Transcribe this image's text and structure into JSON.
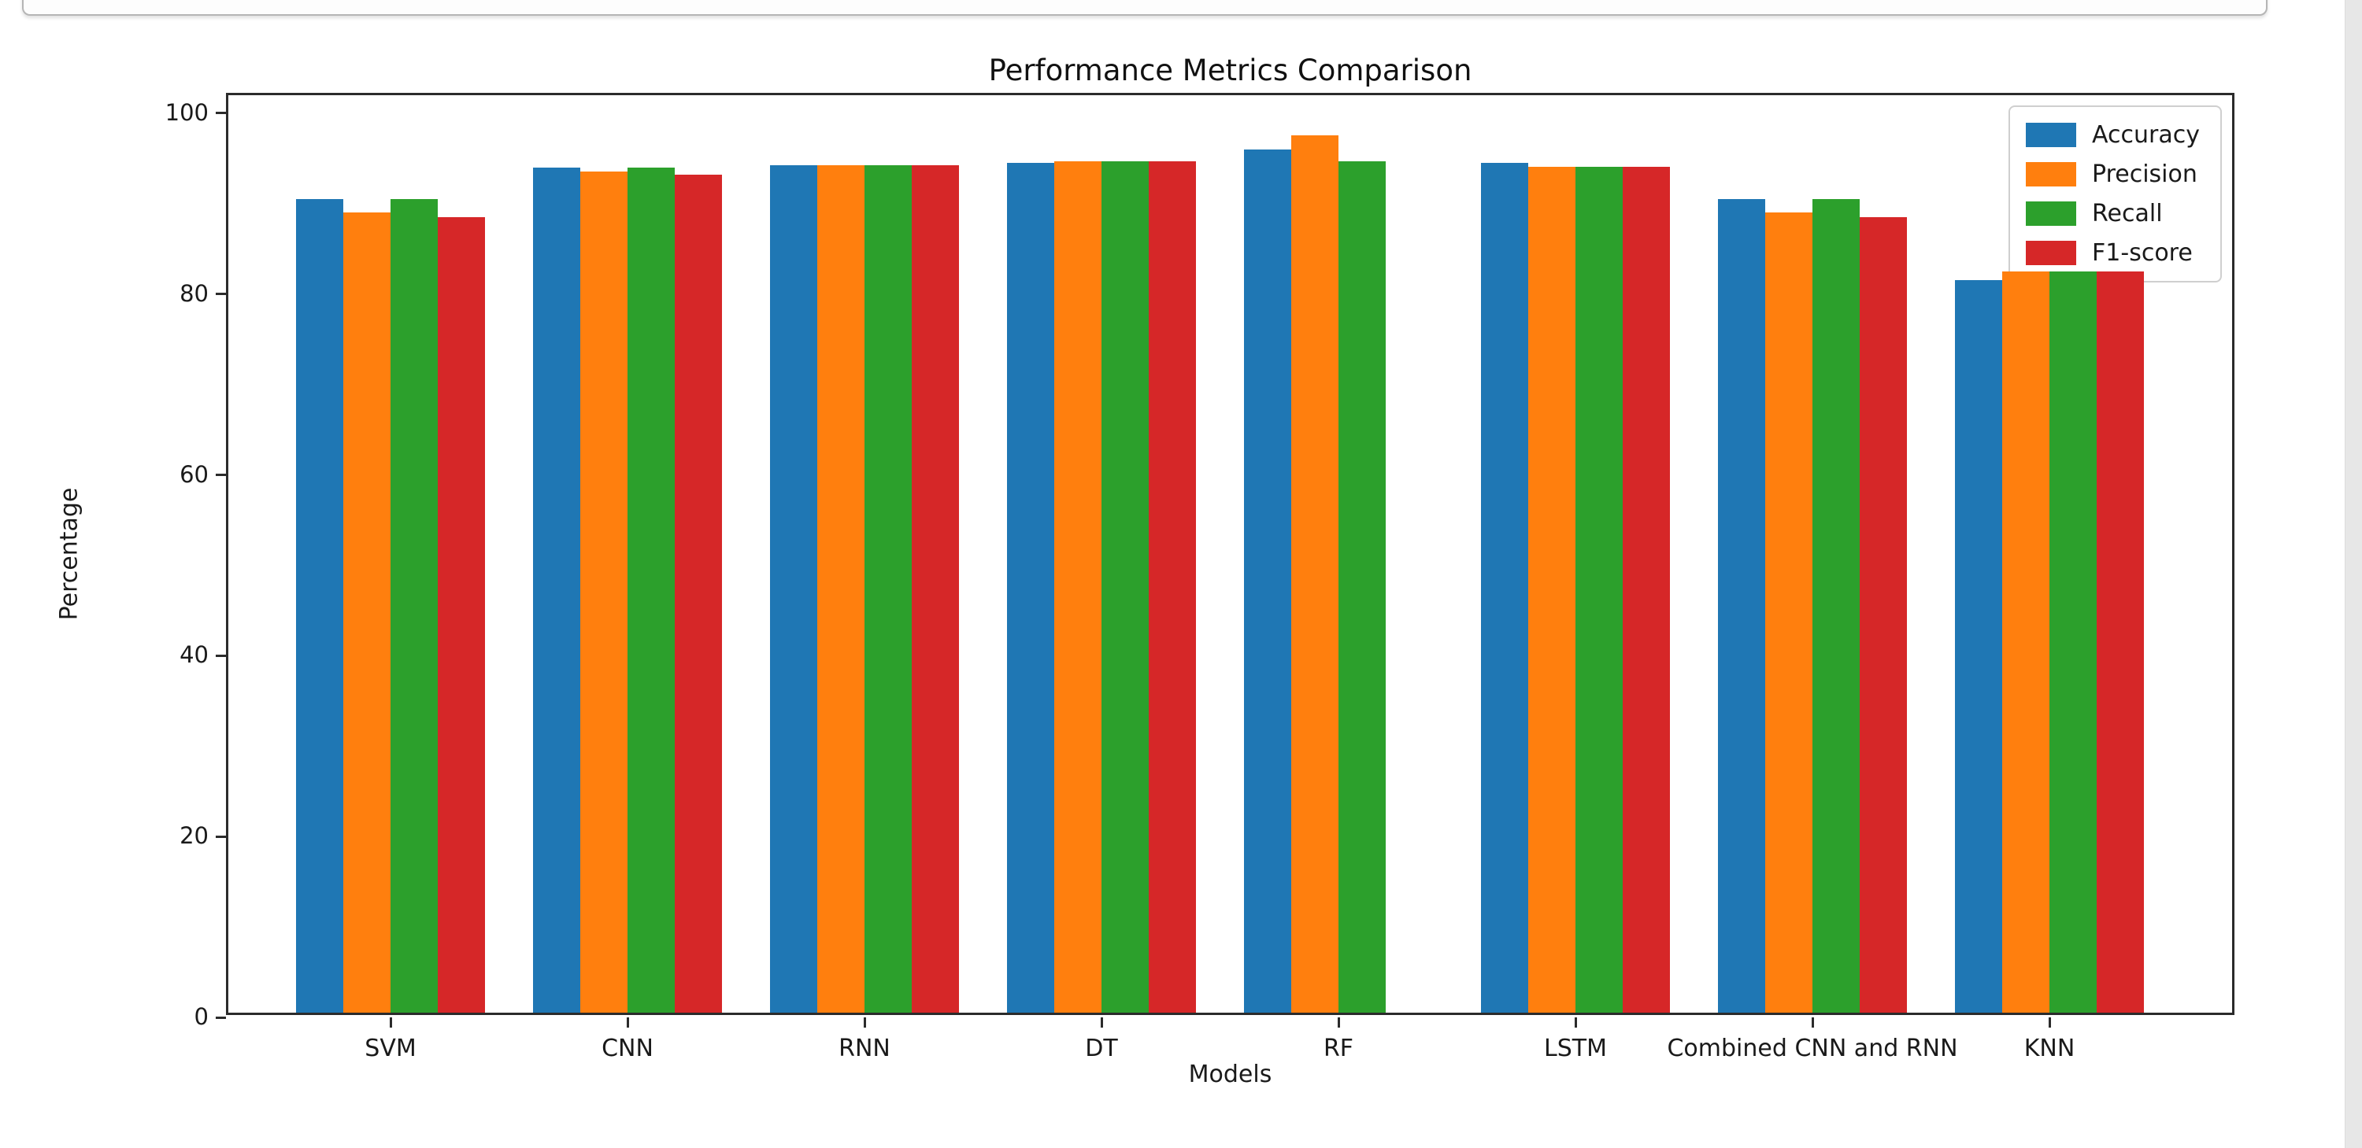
{
  "page": {
    "accent_colors": {
      "accuracy": "#1f77b4",
      "precision": "#ff7f0e",
      "recall": "#2ca02c",
      "f1_score": "#d62728"
    }
  },
  "chart_data": {
    "type": "bar",
    "title": "Performance Metrics Comparison",
    "xlabel": "Models",
    "ylabel": "Percentage",
    "categories": [
      "SVM",
      "CNN",
      "RNN",
      "DT",
      "RF",
      "LSTM",
      "Combined CNN and RNN",
      "KNN"
    ],
    "series": [
      {
        "name": "Accuracy",
        "color": "#1f77b4",
        "values": [
          90,
          93.5,
          93.7,
          94,
          95.5,
          94,
          90,
          81
        ]
      },
      {
        "name": "Precision",
        "color": "#ff7f0e",
        "values": [
          88.5,
          93,
          93.7,
          94.2,
          97,
          93.6,
          88.5,
          82
        ]
      },
      {
        "name": "Recall",
        "color": "#2ca02c",
        "values": [
          90,
          93.5,
          93.7,
          94.2,
          94.2,
          93.6,
          90,
          82
        ]
      },
      {
        "name": "F1-score",
        "color": "#d62728",
        "values": [
          88,
          92.7,
          93.7,
          94.2,
          0,
          93.6,
          88,
          82
        ]
      }
    ],
    "yticks": [
      0,
      20,
      40,
      60,
      80,
      100
    ],
    "ylim": [
      0,
      102
    ],
    "grid": false,
    "legend_position": "upper right"
  }
}
